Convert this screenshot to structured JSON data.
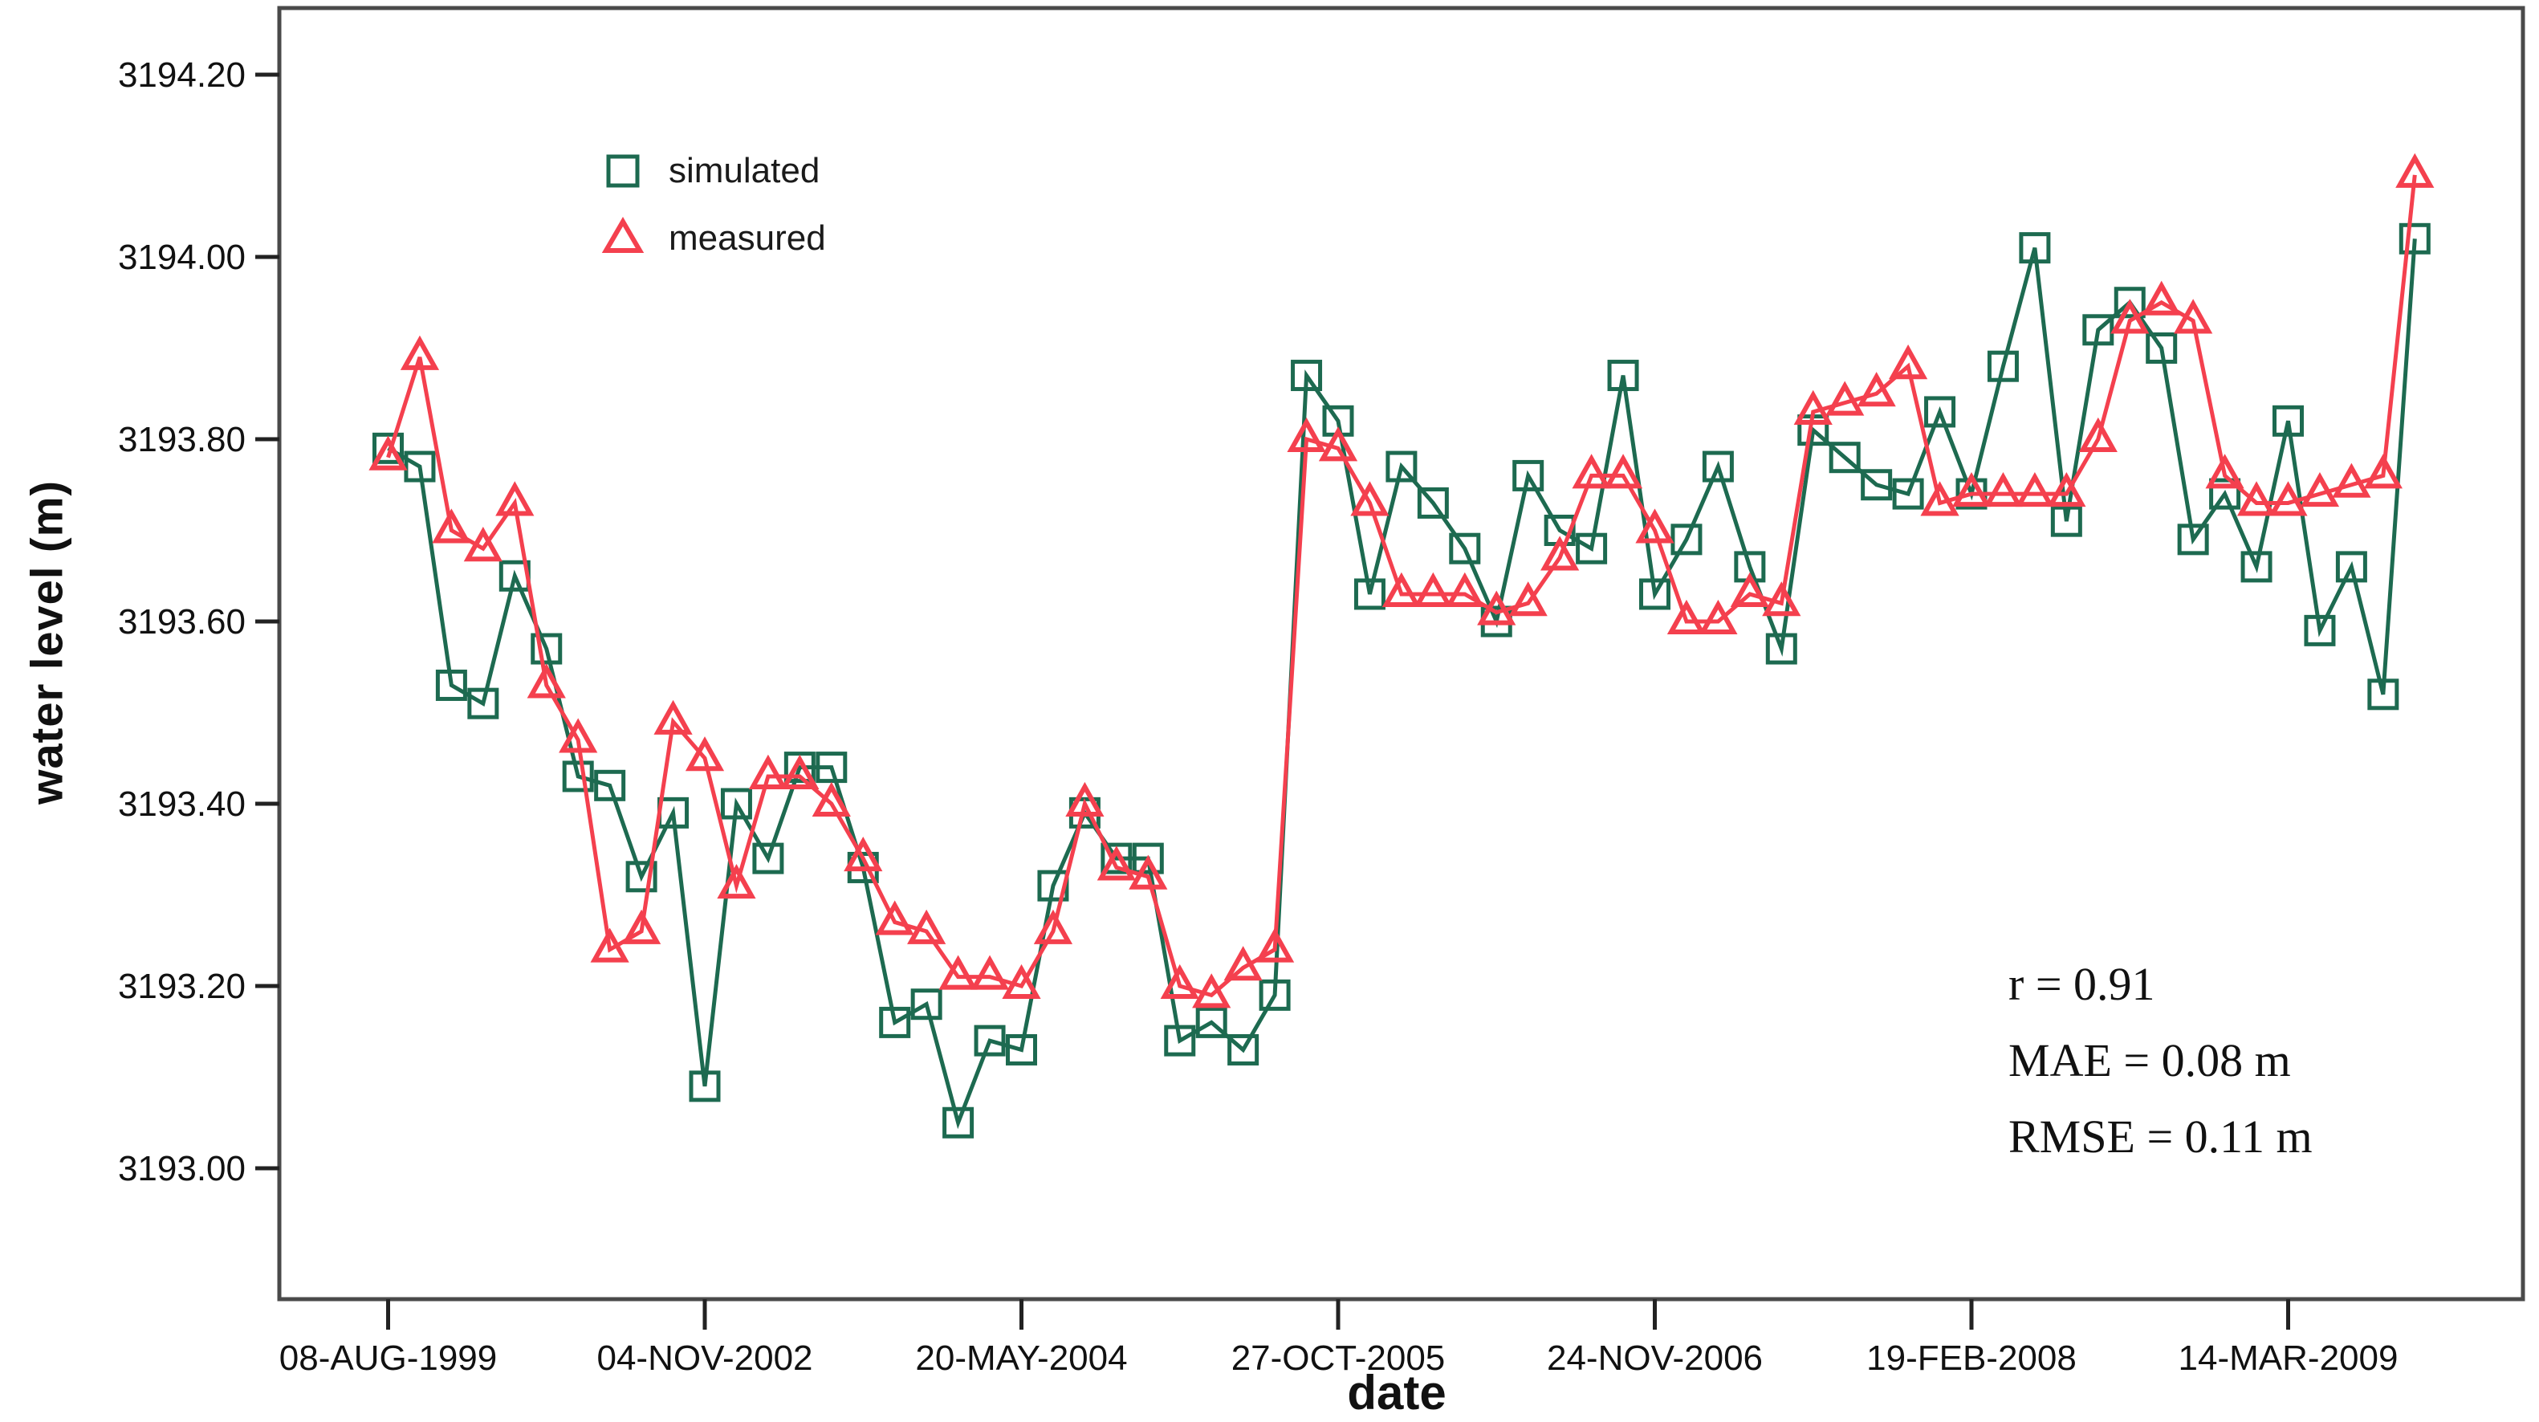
{
  "chart_data": {
    "type": "line",
    "title": "",
    "xlabel": "date",
    "ylabel": "water level (m)",
    "legend_position": "top-left-inside",
    "grid": false,
    "y_ticks": [
      "3193.00",
      "3193.20",
      "3193.40",
      "3193.60",
      "3193.80",
      "3194.00",
      "3194.20"
    ],
    "ylim": [
      3192.97,
      3194.27
    ],
    "x_tick_labels": [
      "08-AUG-1999",
      "04-NOV-2002",
      "20-MAY-2004",
      "27-OCT-2005",
      "24-NOV-2006",
      "19-FEB-2008",
      "14-MAR-2009"
    ],
    "x_tick_indices": [
      0,
      10,
      20,
      30,
      40,
      50,
      60
    ],
    "n_points": 65,
    "series": [
      {
        "name": "simulated",
        "marker": "square",
        "color": "#1d6a50",
        "values": [
          3193.79,
          3193.77,
          3193.53,
          3193.51,
          3193.65,
          3193.57,
          3193.43,
          3193.42,
          3193.32,
          3193.39,
          3193.09,
          3193.4,
          3193.34,
          3193.44,
          3193.44,
          3193.33,
          3193.16,
          3193.18,
          3193.05,
          3193.14,
          3193.13,
          3193.31,
          3193.39,
          3193.34,
          3193.34,
          3193.14,
          3193.16,
          3193.13,
          3193.19,
          3193.87,
          3193.82,
          3193.63,
          3193.77,
          3193.73,
          3193.68,
          3193.6,
          3193.76,
          3193.7,
          3193.68,
          3193.87,
          3193.63,
          3193.69,
          3193.77,
          3193.66,
          3193.57,
          3193.81,
          3193.78,
          3193.75,
          3193.74,
          3193.83,
          3193.74,
          3193.88,
          3194.01,
          3193.71,
          3193.92,
          3193.95,
          3193.9,
          3193.69,
          3193.74,
          3193.66,
          3193.82,
          3193.59,
          3193.66,
          3193.52,
          3194.02
        ]
      },
      {
        "name": "measured",
        "marker": "triangle",
        "color": "#f4404e",
        "values": [
          3193.78,
          3193.89,
          3193.7,
          3193.68,
          3193.73,
          3193.53,
          3193.47,
          3193.24,
          3193.26,
          3193.49,
          3193.45,
          3193.31,
          3193.43,
          3193.43,
          3193.4,
          3193.34,
          3193.27,
          3193.26,
          3193.21,
          3193.21,
          3193.2,
          3193.26,
          3193.4,
          3193.33,
          3193.32,
          3193.2,
          3193.19,
          3193.22,
          3193.24,
          3193.8,
          3193.79,
          3193.73,
          3193.63,
          3193.63,
          3193.63,
          3193.61,
          3193.62,
          3193.67,
          3193.76,
          3193.76,
          3193.7,
          3193.6,
          3193.6,
          3193.63,
          3193.62,
          3193.83,
          3193.84,
          3193.85,
          3193.88,
          3193.73,
          3193.74,
          3193.74,
          3193.74,
          3193.74,
          3193.8,
          3193.93,
          3193.95,
          3193.93,
          3193.76,
          3193.73,
          3193.73,
          3193.74,
          3193.75,
          3193.76,
          3194.09
        ]
      }
    ],
    "annotations": [
      "r = 0.91",
      "MAE = 0.08 m",
      "RMSE = 0.11 m"
    ]
  },
  "axes": {
    "y_title": "water level (m)",
    "x_title": "date"
  },
  "legend": {
    "simulated_label": "simulated",
    "measured_label": "measured"
  },
  "stats": {
    "line1": "r = 0.91",
    "line2": "MAE = 0.08 m",
    "line3": "RMSE = 0.11 m"
  },
  "colors": {
    "simulated": "#1d6a50",
    "measured": "#f4404e",
    "frame": "#4a4a4a",
    "tick": "#222222",
    "text": "#111111",
    "background": "#ffffff"
  }
}
